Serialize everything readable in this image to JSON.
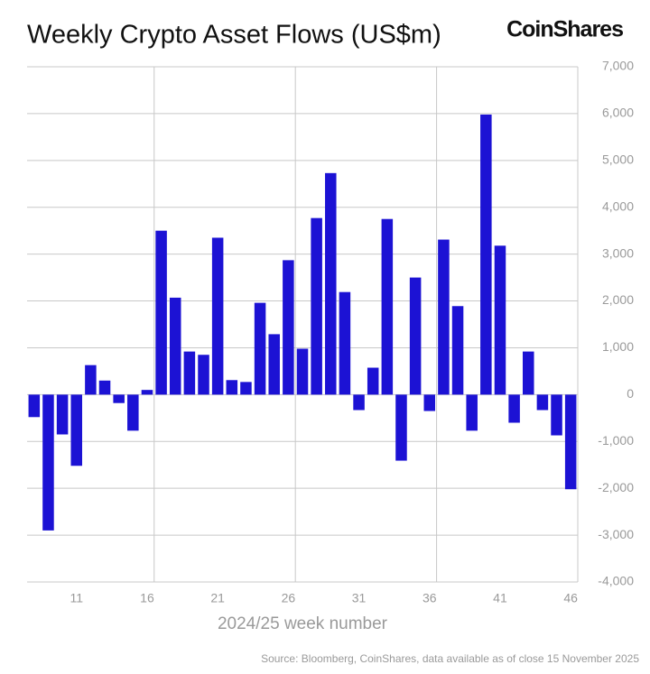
{
  "title": "Weekly Crypto Asset Flows (US$m)",
  "logo": "CoinShares",
  "source": "Source: Bloomberg, CoinShares, data available as of close 15 November 2025",
  "chart_data": {
    "type": "bar",
    "x_label": "2024/25 week number",
    "color": "#1c12d4",
    "categories": [
      null,
      null,
      null,
      "11",
      null,
      null,
      null,
      null,
      "16",
      null,
      null,
      null,
      null,
      "21",
      null,
      null,
      null,
      null,
      "26",
      null,
      null,
      null,
      null,
      "31",
      null,
      null,
      null,
      null,
      "36",
      null,
      null,
      null,
      null,
      "41",
      null,
      null,
      null,
      null,
      "46"
    ],
    "values": [
      -480,
      -2900,
      -850,
      -1520,
      630,
      300,
      -180,
      -770,
      100,
      3500,
      2070,
      920,
      850,
      3350,
      310,
      270,
      1960,
      1290,
      2870,
      980,
      3770,
      4730,
      2190,
      -330,
      575,
      3750,
      -1410,
      2500,
      -350,
      3310,
      1890,
      -770,
      5980,
      3180,
      -600,
      920,
      -330,
      -870,
      -2020
    ],
    "ylim": [
      -4000,
      7000
    ],
    "yticks": [
      {
        "value": -4000,
        "label": "-4,000"
      },
      {
        "value": -3000,
        "label": "-3,000"
      },
      {
        "value": -2000,
        "label": "-2,000"
      },
      {
        "value": -1000,
        "label": "-1,000"
      },
      0,
      {
        "value": 1000,
        "label": "1,000"
      },
      {
        "value": 2000,
        "label": "2,000"
      },
      {
        "value": 3000,
        "label": "3,000"
      },
      {
        "value": 4000,
        "label": "4,000"
      },
      {
        "value": 5000,
        "label": "5,000"
      },
      {
        "value": 6000,
        "label": "6,000"
      },
      {
        "value": 7000,
        "label": "7,000"
      }
    ],
    "grid": true
  }
}
